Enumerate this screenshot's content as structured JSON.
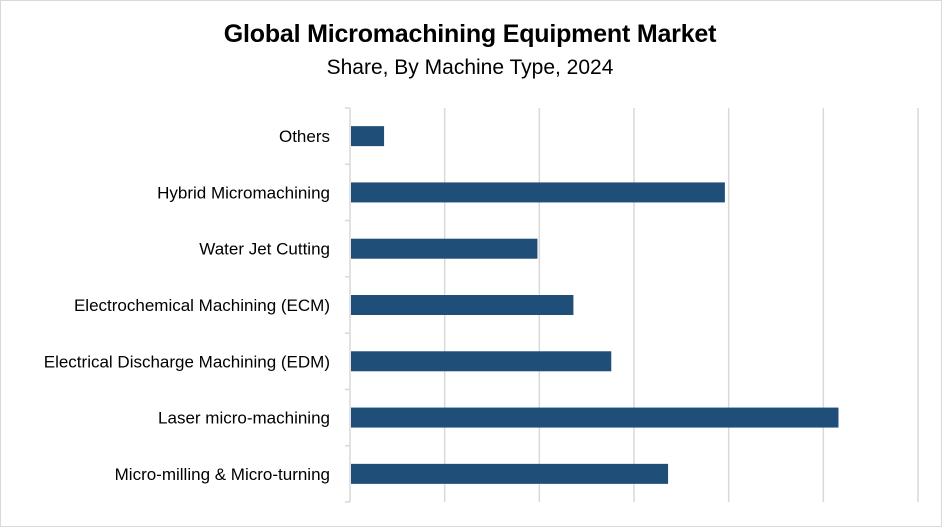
{
  "chart_data": {
    "type": "bar",
    "orientation": "horizontal",
    "title": "Global Micromachining Equipment Market",
    "subtitle": "Share, By Machine Type, 2024",
    "categories": [
      "Micro-milling & Micro-turning",
      "Laser micro-machining",
      "Electrical Discharge Machining (EDM)",
      "Electrochemical Machining (ECM)",
      "Water Jet Cutting",
      "Hybrid Micromachining",
      "Others"
    ],
    "values": [
      16.8,
      25.8,
      13.8,
      11.8,
      9.9,
      19.8,
      1.8
    ],
    "xlim": [
      0,
      30
    ],
    "grid": true,
    "legend": "none",
    "colors": {
      "bar": "#1f4e79",
      "gridline": "#d9d9d9",
      "axis": "#d9d9d9",
      "text": "#000000"
    }
  }
}
